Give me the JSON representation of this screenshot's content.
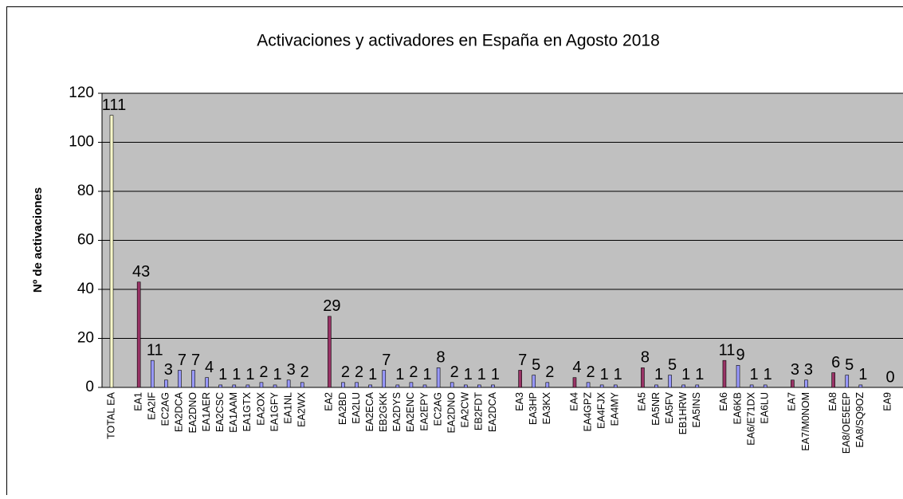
{
  "chart_data": {
    "type": "bar",
    "title": "Activaciones y activadores en España en Agosto 2018",
    "ylabel": "Nº de activaciones",
    "categories": [
      "TOTAL EA",
      null,
      "EA1",
      "EA2IF",
      "EC2AG",
      "EA2DCA",
      "EA2DNO",
      "EA1AER",
      "EA2CSC",
      "EA1AAM",
      "EA1GTX",
      "EA2OX",
      "EA1GFY",
      "EA1NL",
      "EA2WX",
      null,
      "EA2",
      "EA2BD",
      "EA2LU",
      "EA2ECA",
      "EB2GKK",
      "EA2DYS",
      "EA2ENC",
      "EA2EPY",
      "EC2AG",
      "EA2DNO",
      "EA2CW",
      "EB2FDT",
      "EA2DCA",
      null,
      "EA3",
      "EA3HP",
      "EA3KX",
      null,
      "EA4",
      "EA4GPZ",
      "EA4FJX",
      "EA4MY",
      null,
      "EA5",
      "EA5NR",
      "EA5FV",
      "EB1HRW",
      "EA5INS",
      null,
      "EA6",
      "EA6KB",
      "EA6/E71DX",
      "EA6LU",
      null,
      "EA7",
      "EA7/M0NOM",
      null,
      "EA8",
      "EA8/OE5EEP",
      "EA8/SQ9OZ",
      null,
      "EA9"
    ],
    "values": [
      111,
      null,
      43,
      11,
      3,
      7,
      7,
      4,
      1,
      1,
      1,
      2,
      1,
      3,
      2,
      null,
      29,
      2,
      2,
      1,
      7,
      1,
      2,
      1,
      8,
      2,
      1,
      1,
      1,
      null,
      7,
      5,
      2,
      null,
      4,
      2,
      1,
      1,
      null,
      8,
      1,
      5,
      1,
      1,
      null,
      11,
      9,
      1,
      1,
      null,
      3,
      3,
      null,
      6,
      5,
      1,
      null,
      0
    ],
    "colors": [
      "#ffffcc",
      null,
      "#993366",
      "#9999ff",
      "#9999ff",
      "#9999ff",
      "#9999ff",
      "#9999ff",
      "#9999ff",
      "#9999ff",
      "#9999ff",
      "#9999ff",
      "#9999ff",
      "#9999ff",
      "#9999ff",
      null,
      "#993366",
      "#9999ff",
      "#9999ff",
      "#9999ff",
      "#9999ff",
      "#9999ff",
      "#9999ff",
      "#9999ff",
      "#9999ff",
      "#9999ff",
      "#9999ff",
      "#9999ff",
      "#9999ff",
      null,
      "#993366",
      "#9999ff",
      "#9999ff",
      null,
      "#993366",
      "#9999ff",
      "#9999ff",
      "#9999ff",
      null,
      "#993366",
      "#9999ff",
      "#9999ff",
      "#9999ff",
      "#9999ff",
      null,
      "#993366",
      "#9999ff",
      "#9999ff",
      "#9999ff",
      null,
      "#993366",
      "#9999ff",
      null,
      "#993366",
      "#9999ff",
      "#9999ff",
      null,
      "#993366"
    ],
    "plot_background": "#c0c0c0",
    "ylim": [
      0,
      120
    ],
    "yticks": [
      0,
      20,
      40,
      60,
      80,
      100,
      120
    ],
    "grid": true
  }
}
